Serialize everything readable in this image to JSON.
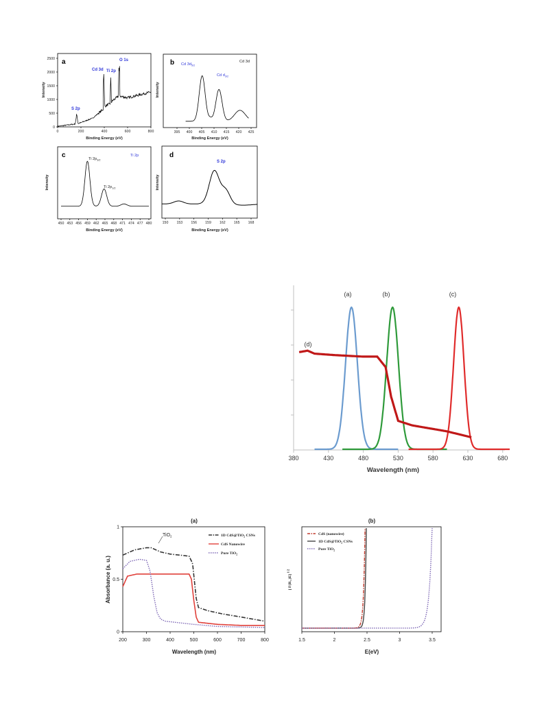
{
  "figures": {
    "xps": {
      "a": {
        "letter": "a",
        "xlabel": "Binding Energy (eV)",
        "ylabel": "Intensity",
        "xticks": [
          "0",
          "200",
          "400",
          "600",
          "800"
        ],
        "yticks": [
          "0",
          "500",
          "1000",
          "1500",
          "2000",
          "2500"
        ],
        "peaks": [
          "S 2p",
          "Cd 3d",
          "Ti 2p",
          "O 1s"
        ]
      },
      "b": {
        "letter": "b",
        "xlabel": "Binding Energy (eV)",
        "ylabel": "Intensity",
        "xticks": [
          "395",
          "400",
          "405",
          "410",
          "415",
          "420",
          "425"
        ],
        "corner": "Cd 3d",
        "ann1": "Cd 3d",
        "ann1_sub": "5/2",
        "ann2": "Cd d",
        "ann2_sub": "3/2"
      },
      "c": {
        "letter": "c",
        "xlabel": "Binding Energy (eV)",
        "ylabel": "Intensity",
        "xticks": [
          "450",
          "453",
          "456",
          "459",
          "462",
          "465",
          "468",
          "471",
          "474",
          "477",
          "480"
        ],
        "corner": "Ti 2p",
        "ann1": "Ti 2p",
        "ann1_sub": "3/2",
        "ann2": "Ti 2p",
        "ann2_sub": "1/2"
      },
      "d": {
        "letter": "d",
        "xlabel": "Binding Energy (eV)",
        "ylabel": "Intensity",
        "xticks": [
          "150",
          "153",
          "156",
          "159",
          "162",
          "165",
          "168"
        ],
        "peak": "S 2p"
      }
    },
    "spectra": {
      "labels": [
        "(a)",
        "(b)",
        "(c)",
        "(d)"
      ],
      "xlabel": "Wavelength (nm)",
      "xticks": [
        "380",
        "430",
        "480",
        "530",
        "580",
        "630",
        "680"
      ]
    },
    "uvvis": {
      "a": {
        "title": "(a)",
        "xlabel": "Wavelength (nm)",
        "ylabel": "Absorbance (a. u.)",
        "xticks": [
          "200",
          "300",
          "400",
          "500",
          "600",
          "700",
          "800"
        ],
        "yticks": [
          "0",
          "0.5",
          "1"
        ],
        "annotation": "TiO",
        "annotation_sub": "2",
        "legend": [
          {
            "text": "1D CdS@TiO",
            "sub": "2",
            "tail": " CSNs"
          },
          {
            "text": "CdS Nanowire",
            "sub": "",
            "tail": ""
          },
          {
            "text": "Pure TiO",
            "sub": "2",
            "tail": ""
          }
        ]
      },
      "b": {
        "title": "(b)",
        "xlabel": "E(eV)",
        "ylabel": "[ F(R",
        "ylabel_sub": "∞",
        "ylabel_tail": ")E] ",
        "ylabel_sup": "1/2",
        "xticks": [
          "1.5",
          "2",
          "2.5",
          "3",
          "3.5"
        ],
        "legend": [
          {
            "text": "CdS (nanowire)",
            "sub": "",
            "tail": ""
          },
          {
            "text": "1D CdS@TiO",
            "sub": "2",
            "tail": " CSNs"
          },
          {
            "text": "Pure TiO",
            "sub": "2",
            "tail": ""
          }
        ]
      }
    }
  },
  "chart_data": [
    {
      "type": "line",
      "panel": "XPS survey (a)",
      "xlabel": "Binding Energy (eV)",
      "ylabel": "Intensity",
      "xlim": [
        0,
        800
      ],
      "ylim": [
        0,
        2500
      ],
      "series": [
        {
          "x": [
            0,
            150,
            165,
            175,
            300,
            390,
            395,
            404,
            410,
            450,
            455,
            462,
            470,
            520,
            526,
            533,
            540,
            600,
            700,
            800
          ],
          "values": [
            20,
            100,
            420,
            110,
            300,
            600,
            2000,
            700,
            720,
            800,
            1800,
            850,
            900,
            1050,
            2220,
            1100,
            1050,
            1000,
            1100,
            1200
          ]
        }
      ],
      "annotations": [
        "S 2p",
        "Cd 3d",
        "Ti 2p",
        "O 1s"
      ]
    },
    {
      "type": "line",
      "panel": "Cd 3d (b)",
      "xlabel": "Binding Energy (eV)",
      "ylabel": "Intensity",
      "xlim": [
        395,
        425
      ],
      "peaks_x": [
        405.2,
        412.0
      ],
      "annotations": [
        "Cd 3d",
        "Cd d",
        "Cd 3d"
      ]
    },
    {
      "type": "line",
      "panel": "Ti 2p (c)",
      "xlabel": "Binding Energy (eV)",
      "ylabel": "Intensity",
      "xlim": [
        450,
        480
      ],
      "peaks_x": [
        459.0,
        464.7
      ],
      "annotations": [
        "Ti 2p",
        "Ti 2p",
        "Ti 2p"
      ]
    },
    {
      "type": "line",
      "panel": "S 2p (d)",
      "xlabel": "Binding Energy (eV)",
      "ylabel": "Intensity",
      "xlim": [
        150,
        170
      ],
      "peaks_x": [
        161.0,
        163.4
      ],
      "annotations": [
        "S 2p"
      ]
    },
    {
      "type": "line",
      "panel": "emission/absorption spectra",
      "xlabel": "Wavelength (nm)",
      "xlim": [
        380,
        690
      ],
      "series": [
        {
          "name": "(a)",
          "color": "#6b9bcf",
          "peak_x": 463
        },
        {
          "name": "(b)",
          "color": "#2e9a3a",
          "peak_x": 522
        },
        {
          "name": "(c)",
          "color": "#e02b2b",
          "peak_x": 617
        },
        {
          "name": "(d)",
          "color": "#c01818",
          "x": [
            388,
            400,
            410,
            440,
            480,
            500,
            512,
            520,
            530,
            550,
            600,
            635
          ],
          "values": [
            0.65,
            0.66,
            0.64,
            0.63,
            0.62,
            0.62,
            0.55,
            0.35,
            0.19,
            0.16,
            0.12,
            0.08
          ]
        }
      ]
    },
    {
      "type": "line",
      "panel": "UV-vis absorbance (a)",
      "xlabel": "Wavelength (nm)",
      "ylabel": "Absorbance (a. u.)",
      "xlim": [
        200,
        800
      ],
      "ylim": [
        0,
        1
      ],
      "series": [
        {
          "name": "1D CdS@TiO2 CSNs",
          "color": "#333333",
          "x": [
            200,
            250,
            300,
            320,
            360,
            400,
            480,
            495,
            510,
            520,
            560,
            620,
            700,
            800
          ],
          "values": [
            0.73,
            0.78,
            0.8,
            0.8,
            0.76,
            0.74,
            0.72,
            0.65,
            0.32,
            0.23,
            0.2,
            0.17,
            0.14,
            0.1
          ]
        },
        {
          "name": "CdS Nanowire",
          "color": "#e0403a",
          "x": [
            200,
            220,
            260,
            300,
            400,
            480,
            490,
            500,
            510,
            520,
            560,
            600,
            700,
            800
          ],
          "values": [
            0.43,
            0.53,
            0.55,
            0.55,
            0.55,
            0.55,
            0.5,
            0.3,
            0.14,
            0.09,
            0.08,
            0.07,
            0.06,
            0.06
          ]
        },
        {
          "name": "Pure TiO2",
          "color": "#7d67b5",
          "x": [
            200,
            230,
            270,
            300,
            315,
            330,
            345,
            360,
            380,
            420,
            500,
            600,
            800
          ],
          "values": [
            0.6,
            0.67,
            0.69,
            0.68,
            0.58,
            0.35,
            0.18,
            0.12,
            0.1,
            0.09,
            0.07,
            0.05,
            0.04
          ]
        }
      ]
    },
    {
      "type": "line",
      "panel": "Tauc plot (b)",
      "xlabel": "E(eV)",
      "xlim": [
        1.5,
        3.6
      ],
      "series": [
        {
          "name": "CdS (nanowire)",
          "color": "#c0392b",
          "edge_x": 2.4
        },
        {
          "name": "1D CdS@TiO2 CSNs",
          "color": "#444444",
          "edge_x": 2.43
        },
        {
          "name": "Pure TiO2",
          "color": "#7d67b5",
          "edge_x": 3.4
        }
      ]
    }
  ]
}
